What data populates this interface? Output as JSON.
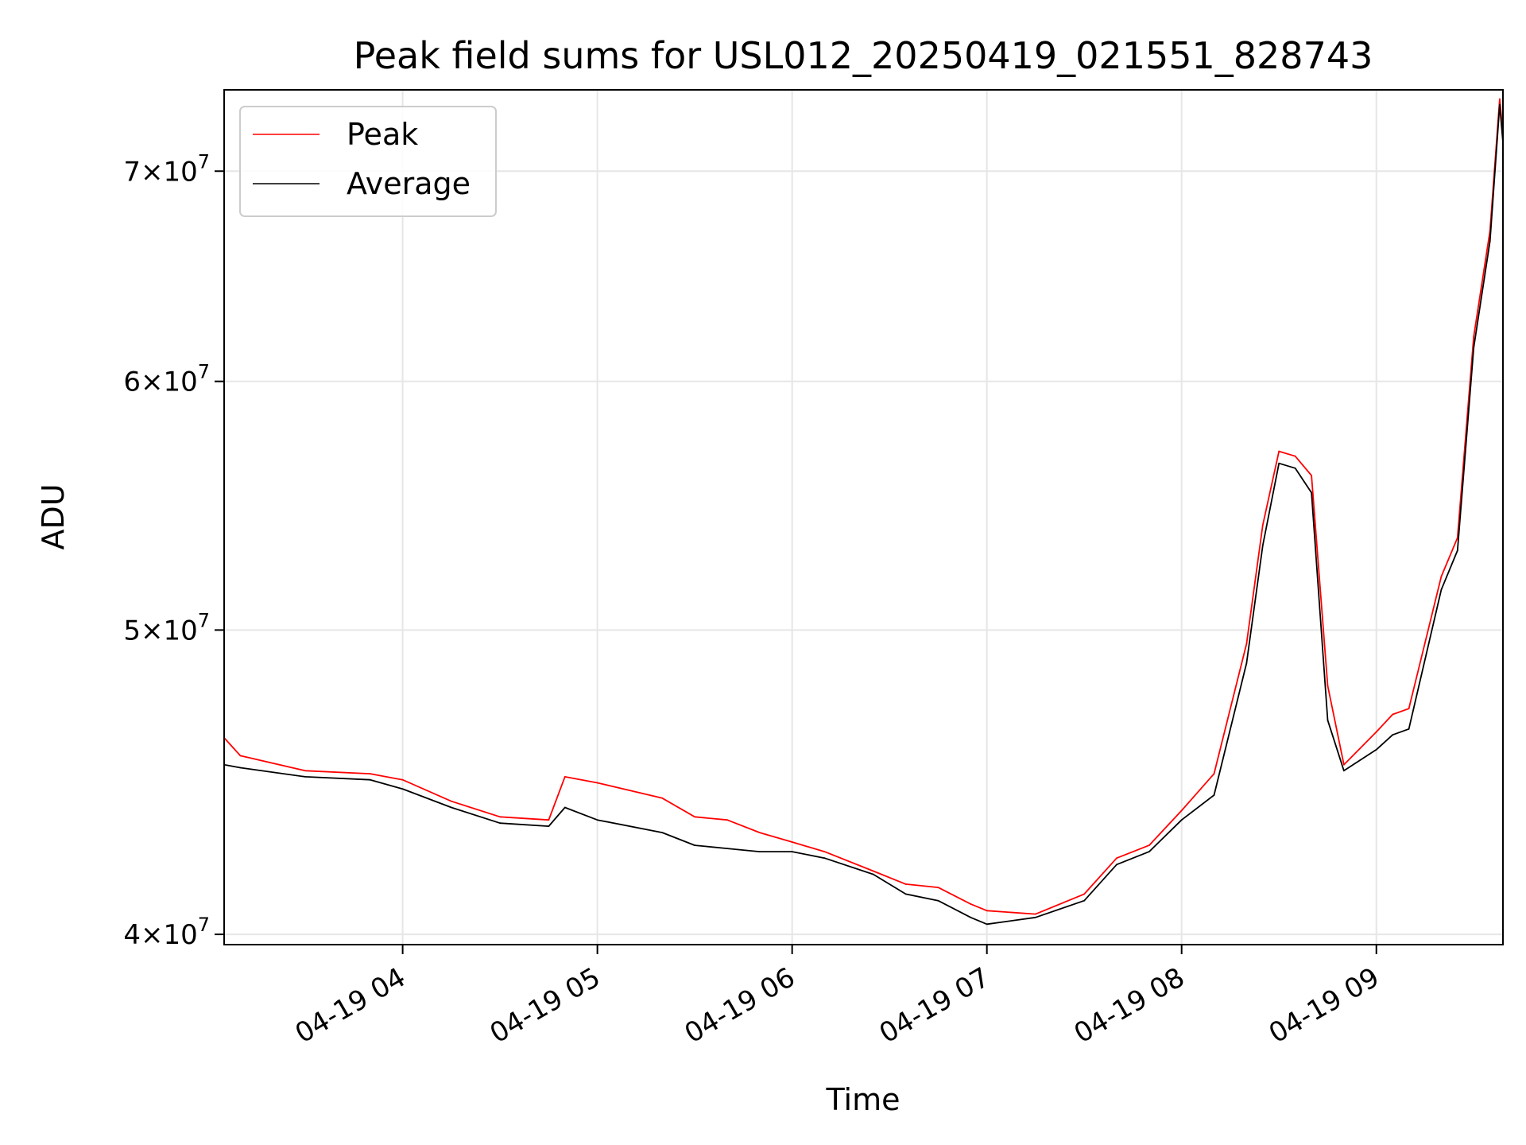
{
  "chart_data": {
    "type": "line",
    "title": "Peak field sums for USL012_20250419_021551_828743",
    "xlabel": "Time",
    "ylabel": "ADU",
    "yscale": "log",
    "ylim": [
      39700000,
      74300000
    ],
    "xlim": [
      "04-19 03:05",
      "04-19 09:39"
    ],
    "grid": true,
    "legend": {
      "position": "top-left",
      "entries": [
        "Peak",
        "Average"
      ]
    },
    "x_ticks": [
      "04-19 04",
      "04-19 05",
      "04-19 06",
      "04-19 07",
      "04-19 08",
      "04-19 09"
    ],
    "y_ticks": [
      {
        "value": 40000000,
        "base": "4",
        "exp": "7"
      },
      {
        "value": 50000000,
        "base": "5",
        "exp": "7"
      },
      {
        "value": 60000000,
        "base": "6",
        "exp": "7"
      },
      {
        "value": 70000000,
        "base": "7",
        "exp": "7"
      }
    ],
    "series": [
      {
        "name": "Peak",
        "color": "#ff0000",
        "x": [
          "04-19 03:05",
          "04-19 03:10",
          "04-19 03:30",
          "04-19 03:50",
          "04-19 04:00",
          "04-19 04:15",
          "04-19 04:30",
          "04-19 04:45",
          "04-19 04:50",
          "04-19 05:00",
          "04-19 05:20",
          "04-19 05:30",
          "04-19 05:40",
          "04-19 05:50",
          "04-19 06:00",
          "04-19 06:10",
          "04-19 06:25",
          "04-19 06:35",
          "04-19 06:45",
          "04-19 06:55",
          "04-19 07:00",
          "04-19 07:15",
          "04-19 07:30",
          "04-19 07:40",
          "04-19 07:50",
          "04-19 08:00",
          "04-19 08:10",
          "04-19 08:20",
          "04-19 08:25",
          "04-19 08:30",
          "04-19 08:35",
          "04-19 08:40",
          "04-19 08:45",
          "04-19 08:50",
          "04-19 09:00",
          "04-19 09:05",
          "04-19 09:10",
          "04-19 09:20",
          "04-19 09:25",
          "04-19 09:30",
          "04-19 09:35",
          "04-19 09:38",
          "04-19 09:39"
        ],
        "y": [
          46200000,
          45600000,
          45100000,
          45000000,
          44800000,
          44100000,
          43600000,
          43500000,
          44900000,
          44700000,
          44200000,
          43600000,
          43500000,
          43100000,
          42800000,
          42500000,
          41900000,
          41500000,
          41400000,
          40900000,
          40700000,
          40600000,
          41200000,
          42300000,
          42700000,
          43800000,
          45000000,
          49500000,
          54000000,
          57000000,
          56800000,
          56000000,
          48000000,
          45300000,
          46400000,
          47000000,
          47200000,
          52000000,
          53500000,
          62000000,
          67000000,
          73800000,
          72000000
        ]
      },
      {
        "name": "Average",
        "color": "#000000",
        "x": [
          "04-19 03:05",
          "04-19 03:10",
          "04-19 03:30",
          "04-19 03:50",
          "04-19 04:00",
          "04-19 04:15",
          "04-19 04:30",
          "04-19 04:45",
          "04-19 04:50",
          "04-19 05:00",
          "04-19 05:20",
          "04-19 05:30",
          "04-19 05:40",
          "04-19 05:50",
          "04-19 06:00",
          "04-19 06:10",
          "04-19 06:25",
          "04-19 06:35",
          "04-19 06:45",
          "04-19 06:55",
          "04-19 07:00",
          "04-19 07:15",
          "04-19 07:30",
          "04-19 07:40",
          "04-19 07:50",
          "04-19 08:00",
          "04-19 08:10",
          "04-19 08:20",
          "04-19 08:25",
          "04-19 08:30",
          "04-19 08:35",
          "04-19 08:40",
          "04-19 08:45",
          "04-19 08:50",
          "04-19 09:00",
          "04-19 09:05",
          "04-19 09:10",
          "04-19 09:20",
          "04-19 09:25",
          "04-19 09:30",
          "04-19 09:35",
          "04-19 09:38",
          "04-19 09:39"
        ],
        "y": [
          45300000,
          45200000,
          44900000,
          44800000,
          44500000,
          43900000,
          43400000,
          43300000,
          43900000,
          43500000,
          43100000,
          42700000,
          42600000,
          42500000,
          42500000,
          42300000,
          41800000,
          41200000,
          41000000,
          40500000,
          40300000,
          40500000,
          41000000,
          42100000,
          42500000,
          43500000,
          44300000,
          48800000,
          53200000,
          56500000,
          56300000,
          55300000,
          46800000,
          45100000,
          45800000,
          46300000,
          46500000,
          51500000,
          53000000,
          61500000,
          66500000,
          73500000,
          71500000
        ]
      }
    ]
  }
}
